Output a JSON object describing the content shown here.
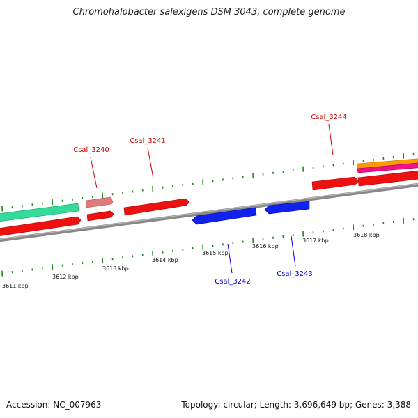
{
  "title": "Chromohalobacter salexigens DSM 3043, complete genome",
  "footer": {
    "accession": "Accession: NC_007963",
    "summary": "Topology: circular; Length: 3,696,649 bp; Genes: 3,388"
  },
  "colors": {
    "forward_cds": "#ee1111",
    "reverse_cds": "#1122ee",
    "pseudo": "#e07a7a",
    "rna_green": "#33dd99",
    "orange": "#ff9900",
    "magenta": "#ee1188",
    "tick": "#228822",
    "backbone": "#888888",
    "label_forward": "#cc0000",
    "label_reverse": "#0000cc"
  },
  "scale_labels": [
    "3611 kbp",
    "3612 kbp",
    "3613 kbp",
    "3614 kbp",
    "3615 kbp",
    "3616 kbp",
    "3617 kbp",
    "3618 kbp"
  ],
  "gene_labels": [
    {
      "text": "Csal_3240",
      "strand": "forward"
    },
    {
      "text": "Csal_3241",
      "strand": "forward"
    },
    {
      "text": "Csal_3244",
      "strand": "forward"
    },
    {
      "text": "Csal_3242",
      "strand": "reverse"
    },
    {
      "text": "Csal_3243",
      "strand": "reverse"
    }
  ]
}
